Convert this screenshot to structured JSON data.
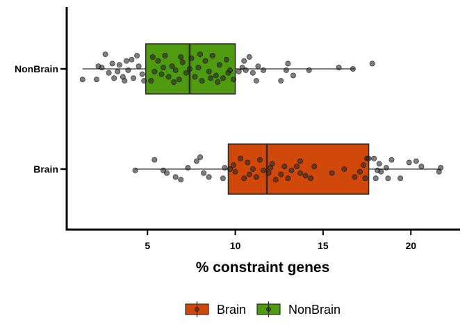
{
  "chart_data": {
    "type": "boxplot",
    "xlabel": "% constraint genes",
    "ylabel": "",
    "xlim": [
      0.4,
      22.8
    ],
    "x_ticks": [
      5,
      10,
      15,
      20
    ],
    "orientation": "horizontal",
    "grid": false,
    "legend_position": "bottom",
    "categories": [
      "NonBrain",
      "Brain"
    ],
    "series": [
      {
        "name": "NonBrain",
        "color": "#4f9a10",
        "box": {
          "whisker_low": 1.3,
          "q1": 4.9,
          "median": 7.4,
          "q3": 10.0,
          "whisker_high": 16.8
        },
        "points": [
          [
            1.3,
            0.4
          ],
          [
            2.1,
            0.4
          ],
          [
            2.4,
            -0.05
          ],
          [
            3.1,
            0.35
          ],
          [
            3.3,
            0.1
          ],
          [
            3.6,
            0.3
          ],
          [
            3.8,
            -0.3
          ],
          [
            4.2,
            0.35
          ],
          [
            4.5,
            -0.1
          ],
          [
            4.7,
            0.2
          ],
          [
            2.8,
            0.15
          ],
          [
            3.0,
            -0.2
          ],
          [
            2.6,
            -0.55
          ],
          [
            3.4,
            -0.15
          ],
          [
            2.2,
            -0.1
          ],
          [
            3.9,
            0.05
          ],
          [
            4.1,
            -0.35
          ],
          [
            4.8,
            0.45
          ],
          [
            4.4,
            -0.5
          ],
          [
            3.7,
            0.45
          ],
          [
            5.2,
            0.45
          ],
          [
            5.4,
            0.1
          ],
          [
            5.6,
            -0.3
          ],
          [
            5.8,
            0.2
          ],
          [
            6.0,
            -0.5
          ],
          [
            6.2,
            0.3
          ],
          [
            6.4,
            -0.1
          ],
          [
            6.6,
            0.05
          ],
          [
            6.8,
            0.4
          ],
          [
            7.0,
            -0.25
          ],
          [
            7.2,
            0.15
          ],
          [
            7.5,
            -0.4
          ],
          [
            7.7,
            0.3
          ],
          [
            7.9,
            -0.05
          ],
          [
            8.1,
            0.45
          ],
          [
            8.3,
            -0.3
          ],
          [
            8.5,
            0.1
          ],
          [
            8.7,
            -0.5
          ],
          [
            8.9,
            0.25
          ],
          [
            9.1,
            -0.15
          ],
          [
            9.3,
            0.35
          ],
          [
            9.5,
            -0.35
          ],
          [
            9.7,
            0.05
          ],
          [
            9.9,
            0.4
          ],
          [
            5.3,
            -0.45
          ],
          [
            6.5,
            0.5
          ],
          [
            7.4,
            0.0
          ],
          [
            8.0,
            -0.55
          ],
          [
            9.0,
            0.5
          ],
          [
            5.9,
            -0.05
          ],
          [
            6.9,
            -0.45
          ],
          [
            8.6,
            0.35
          ],
          [
            10.2,
            0.1
          ],
          [
            10.4,
            -0.05
          ],
          [
            10.6,
            0.05
          ],
          [
            10.8,
            -0.45
          ],
          [
            11.0,
            0.15
          ],
          [
            11.3,
            -0.1
          ],
          [
            11.6,
            0.05
          ],
          [
            12.6,
            0.45
          ],
          [
            12.9,
            0.05
          ],
          [
            13.0,
            -0.2
          ],
          [
            13.3,
            0.25
          ],
          [
            14.2,
            0.05
          ],
          [
            15.9,
            -0.05
          ],
          [
            16.7,
            0.0
          ],
          [
            17.8,
            -0.2
          ],
          [
            10.5,
            -0.3
          ],
          [
            11.2,
            0.45
          ],
          [
            9.6,
            0.15
          ]
        ]
      },
      {
        "name": "Brain",
        "color": "#d1490a",
        "box": {
          "whisker_low": 4.3,
          "q1": 9.6,
          "median": 11.8,
          "q3": 17.6,
          "whisker_high": 21.7
        },
        "points": [
          [
            4.3,
            0.05
          ],
          [
            5.4,
            -0.35
          ],
          [
            5.9,
            0.05
          ],
          [
            6.1,
            0.15
          ],
          [
            6.6,
            0.3
          ],
          [
            6.9,
            0.4
          ],
          [
            7.3,
            -0.05
          ],
          [
            7.8,
            -0.3
          ],
          [
            8.0,
            -0.45
          ],
          [
            8.2,
            0.15
          ],
          [
            8.5,
            0.3
          ],
          [
            9.3,
            0.35
          ],
          [
            9.4,
            -0.05
          ],
          [
            9.7,
            0.0
          ],
          [
            9.9,
            -0.15
          ],
          [
            10.0,
            0.1
          ],
          [
            10.3,
            -0.4
          ],
          [
            10.5,
            0.35
          ],
          [
            10.7,
            -0.25
          ],
          [
            11.0,
            0.0
          ],
          [
            11.2,
            0.3
          ],
          [
            11.4,
            -0.35
          ],
          [
            11.6,
            0.05
          ],
          [
            11.9,
            0.15
          ],
          [
            12.1,
            -0.2
          ],
          [
            12.3,
            0.4
          ],
          [
            12.6,
            0.2
          ],
          [
            12.8,
            -0.1
          ],
          [
            13.0,
            0.35
          ],
          [
            13.2,
            0.05
          ],
          [
            13.5,
            -0.1
          ],
          [
            13.7,
            0.15
          ],
          [
            14.0,
            0.25
          ],
          [
            14.3,
            0.35
          ],
          [
            14.5,
            -0.1
          ],
          [
            10.8,
            0.2
          ],
          [
            12.0,
            -0.05
          ],
          [
            13.7,
            -0.3
          ],
          [
            16.2,
            0.0
          ],
          [
            17.5,
            -0.4
          ],
          [
            17.9,
            -0.4
          ],
          [
            18.0,
            0.35
          ],
          [
            18.1,
            0.05
          ],
          [
            18.2,
            -0.2
          ],
          [
            18.3,
            0.1
          ],
          [
            18.6,
            -0.05
          ],
          [
            18.7,
            0.35
          ],
          [
            18.9,
            -0.35
          ],
          [
            19.4,
            0.35
          ],
          [
            19.9,
            -0.25
          ],
          [
            20.3,
            -0.3
          ],
          [
            20.6,
            -0.1
          ],
          [
            21.6,
            0.1
          ],
          [
            21.7,
            -0.05
          ],
          [
            17.4,
            0.35
          ],
          [
            17.6,
            -0.4
          ],
          [
            17.3,
            -0.15
          ],
          [
            17.1,
            0.1
          ],
          [
            16.8,
            0.3
          ],
          [
            15.5,
            0.15
          ]
        ]
      }
    ]
  },
  "legend": {
    "items": [
      {
        "label": "Brain",
        "color": "#d1490a"
      },
      {
        "label": "NonBrain",
        "color": "#4f9a10"
      }
    ]
  }
}
